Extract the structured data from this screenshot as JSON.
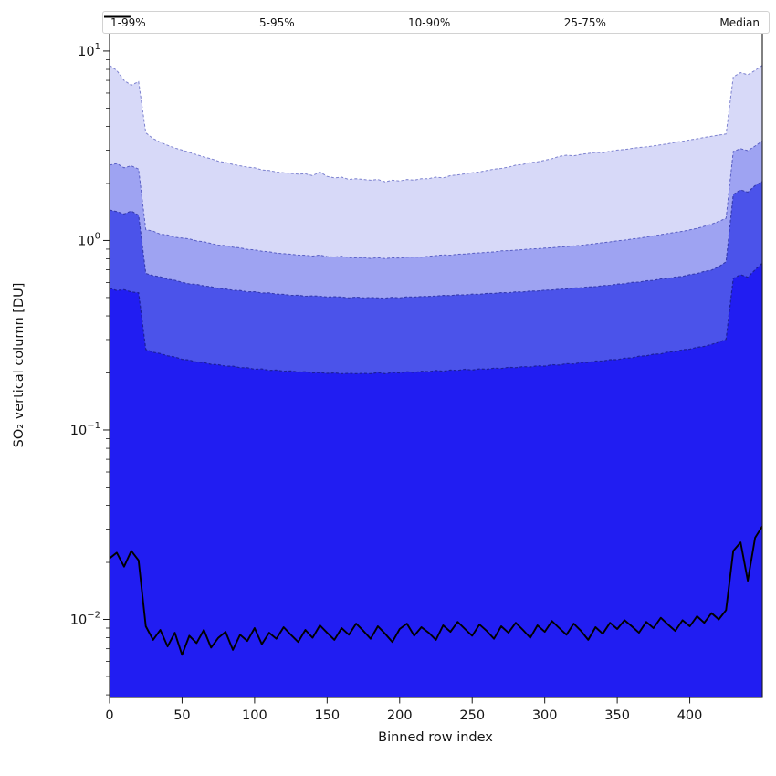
{
  "figure_title": "",
  "legend": {
    "items": [
      {
        "label": "1-99%",
        "swatch": "#c9cbf5",
        "dash": "4 3",
        "width": 1.1
      },
      {
        "label": "5-95%",
        "swatch": "#a3a7f3",
        "dash": "4 3",
        "width": 1.2
      },
      {
        "label": "10-90%",
        "swatch": "#6e74ef",
        "dash": "5 3",
        "width": 1.5
      },
      {
        "label": "25-75%",
        "swatch": "#3f45ec",
        "dash": "5 3",
        "width": 2.2
      },
      {
        "label": "Median",
        "swatch": "#000000",
        "dash": "",
        "width": 3
      }
    ]
  },
  "chart_data": {
    "type": "area",
    "title": "",
    "xlabel": "Binned row index",
    "ylabel": "SO₂ vertical column [DU]",
    "yscale": "log",
    "grid": false,
    "legend_position": "top",
    "xlim": [
      0,
      450
    ],
    "ylim_log10": [
      -2.412,
      1.096
    ],
    "x_ticks": [
      0,
      50,
      100,
      150,
      200,
      250,
      300,
      350,
      400
    ],
    "y_ticks": [
      {
        "base": "10",
        "exp": "1",
        "value": 10
      },
      {
        "base": "10",
        "exp": "0",
        "value": 1
      },
      {
        "base": "10",
        "exp": "−1",
        "value": 0.1
      },
      {
        "base": "10",
        "exp": "−2",
        "value": 0.01
      }
    ],
    "x": [
      0,
      5,
      10,
      15,
      20,
      25,
      30,
      35,
      40,
      45,
      50,
      55,
      60,
      65,
      70,
      75,
      80,
      85,
      90,
      95,
      100,
      105,
      110,
      115,
      120,
      125,
      130,
      135,
      140,
      145,
      150,
      155,
      160,
      165,
      170,
      175,
      180,
      185,
      190,
      195,
      200,
      205,
      210,
      215,
      220,
      225,
      230,
      235,
      240,
      245,
      250,
      255,
      260,
      265,
      270,
      275,
      280,
      285,
      290,
      295,
      300,
      305,
      310,
      315,
      320,
      325,
      330,
      335,
      340,
      345,
      350,
      355,
      360,
      365,
      370,
      375,
      380,
      385,
      390,
      395,
      400,
      405,
      410,
      415,
      420,
      425,
      430,
      435,
      440,
      445,
      450
    ],
    "series": [
      {
        "name": "1-99%",
        "kind": "band_upper",
        "fill": "#d7d9f8",
        "edge": "#7d82cf",
        "dash": "3 2.2",
        "line_width": 1,
        "values": [
          8.4,
          7.9,
          7.0,
          6.6,
          6.9,
          3.7,
          3.45,
          3.3,
          3.18,
          3.08,
          3.0,
          2.92,
          2.84,
          2.76,
          2.7,
          2.62,
          2.58,
          2.52,
          2.48,
          2.44,
          2.42,
          2.36,
          2.34,
          2.3,
          2.28,
          2.26,
          2.24,
          2.25,
          2.2,
          2.3,
          2.18,
          2.14,
          2.16,
          2.1,
          2.12,
          2.1,
          2.08,
          2.1,
          2.04,
          2.08,
          2.06,
          2.1,
          2.08,
          2.12,
          2.12,
          2.16,
          2.14,
          2.2,
          2.22,
          2.25,
          2.28,
          2.3,
          2.34,
          2.38,
          2.4,
          2.44,
          2.5,
          2.52,
          2.58,
          2.6,
          2.65,
          2.7,
          2.78,
          2.82,
          2.8,
          2.85,
          2.88,
          2.92,
          2.9,
          2.96,
          3.0,
          3.02,
          3.06,
          3.1,
          3.12,
          3.16,
          3.2,
          3.24,
          3.3,
          3.34,
          3.4,
          3.44,
          3.5,
          3.55,
          3.6,
          3.65,
          7.3,
          7.7,
          7.5,
          7.9,
          8.4
        ]
      },
      {
        "name": "5-95%",
        "kind": "band_upper",
        "fill": "#9ea3f2",
        "edge": "#585ec4",
        "dash": "3 2.2",
        "line_width": 1,
        "values": [
          2.5,
          2.55,
          2.42,
          2.48,
          2.38,
          1.14,
          1.12,
          1.08,
          1.07,
          1.04,
          1.03,
          1.02,
          0.995,
          0.985,
          0.965,
          0.945,
          0.94,
          0.922,
          0.915,
          0.898,
          0.892,
          0.878,
          0.872,
          0.858,
          0.852,
          0.846,
          0.838,
          0.836,
          0.828,
          0.838,
          0.822,
          0.818,
          0.826,
          0.812,
          0.81,
          0.814,
          0.804,
          0.812,
          0.802,
          0.81,
          0.808,
          0.816,
          0.818,
          0.816,
          0.826,
          0.832,
          0.84,
          0.836,
          0.846,
          0.848,
          0.856,
          0.86,
          0.866,
          0.87,
          0.882,
          0.884,
          0.89,
          0.894,
          0.902,
          0.904,
          0.912,
          0.916,
          0.924,
          0.928,
          0.936,
          0.942,
          0.953,
          0.962,
          0.974,
          0.983,
          0.996,
          1.004,
          1.018,
          1.028,
          1.044,
          1.058,
          1.074,
          1.088,
          1.104,
          1.118,
          1.138,
          1.158,
          1.188,
          1.22,
          1.26,
          1.31,
          2.95,
          3.05,
          2.98,
          3.15,
          3.35
        ]
      },
      {
        "name": "10-90%",
        "kind": "band_upper",
        "fill": "#4b53ea",
        "edge": "#343aae",
        "dash": "3 2.2",
        "line_width": 1.1,
        "values": [
          1.45,
          1.42,
          1.38,
          1.43,
          1.36,
          0.67,
          0.652,
          0.643,
          0.625,
          0.617,
          0.602,
          0.59,
          0.587,
          0.576,
          0.57,
          0.558,
          0.555,
          0.546,
          0.545,
          0.536,
          0.537,
          0.528,
          0.529,
          0.521,
          0.52,
          0.513,
          0.514,
          0.508,
          0.51,
          0.508,
          0.503,
          0.505,
          0.503,
          0.498,
          0.503,
          0.498,
          0.5,
          0.498,
          0.496,
          0.501,
          0.498,
          0.504,
          0.503,
          0.506,
          0.507,
          0.509,
          0.513,
          0.512,
          0.517,
          0.516,
          0.521,
          0.52,
          0.526,
          0.525,
          0.531,
          0.53,
          0.536,
          0.535,
          0.541,
          0.541,
          0.547,
          0.548,
          0.553,
          0.555,
          0.561,
          0.563,
          0.569,
          0.571,
          0.578,
          0.58,
          0.589,
          0.591,
          0.601,
          0.603,
          0.613,
          0.616,
          0.627,
          0.63,
          0.642,
          0.646,
          0.661,
          0.669,
          0.687,
          0.698,
          0.728,
          0.772,
          1.75,
          1.85,
          1.8,
          1.95,
          2.05
        ]
      },
      {
        "name": "25-75%",
        "kind": "band_upper",
        "fill": "#211df2",
        "edge": "#1c2099",
        "dash": "3 2.2",
        "line_width": 1.2,
        "values": [
          0.56,
          0.545,
          0.55,
          0.535,
          0.53,
          0.266,
          0.257,
          0.253,
          0.246,
          0.243,
          0.236,
          0.234,
          0.228,
          0.227,
          0.222,
          0.221,
          0.217,
          0.217,
          0.213,
          0.213,
          0.209,
          0.21,
          0.206,
          0.207,
          0.204,
          0.205,
          0.202,
          0.203,
          0.2,
          0.201,
          0.199,
          0.2,
          0.198,
          0.199,
          0.198,
          0.199,
          0.198,
          0.201,
          0.198,
          0.201,
          0.2,
          0.203,
          0.201,
          0.204,
          0.203,
          0.206,
          0.204,
          0.207,
          0.206,
          0.209,
          0.207,
          0.21,
          0.209,
          0.212,
          0.211,
          0.214,
          0.213,
          0.216,
          0.215,
          0.218,
          0.217,
          0.221,
          0.22,
          0.224,
          0.223,
          0.227,
          0.227,
          0.231,
          0.231,
          0.235,
          0.235,
          0.239,
          0.24,
          0.245,
          0.246,
          0.251,
          0.252,
          0.258,
          0.259,
          0.265,
          0.267,
          0.273,
          0.276,
          0.283,
          0.29,
          0.301,
          0.63,
          0.66,
          0.64,
          0.7,
          0.76
        ]
      },
      {
        "name": "Median",
        "kind": "line",
        "color": "#000000",
        "line_width": 1.9,
        "values": [
          0.021,
          0.0225,
          0.019,
          0.023,
          0.0205,
          0.0092,
          0.0078,
          0.0088,
          0.0072,
          0.0085,
          0.0065,
          0.0082,
          0.0075,
          0.0088,
          0.0071,
          0.008,
          0.0086,
          0.0069,
          0.0083,
          0.0077,
          0.009,
          0.0074,
          0.0085,
          0.0079,
          0.0091,
          0.0083,
          0.0076,
          0.0088,
          0.008,
          0.0093,
          0.0085,
          0.0078,
          0.009,
          0.0083,
          0.0095,
          0.0087,
          0.0079,
          0.0092,
          0.0084,
          0.0076,
          0.0089,
          0.0095,
          0.0082,
          0.0091,
          0.0085,
          0.0078,
          0.0093,
          0.0086,
          0.0097,
          0.0089,
          0.0082,
          0.0094,
          0.0087,
          0.0079,
          0.0092,
          0.0085,
          0.0096,
          0.0088,
          0.008,
          0.0093,
          0.0086,
          0.0098,
          0.009,
          0.0083,
          0.0095,
          0.0087,
          0.0078,
          0.0091,
          0.0084,
          0.0096,
          0.0089,
          0.0099,
          0.0092,
          0.0085,
          0.0097,
          0.009,
          0.0102,
          0.0094,
          0.0087,
          0.0099,
          0.0092,
          0.0104,
          0.0096,
          0.0108,
          0.01,
          0.0112,
          0.023,
          0.0255,
          0.016,
          0.027,
          0.031
        ]
      }
    ]
  }
}
